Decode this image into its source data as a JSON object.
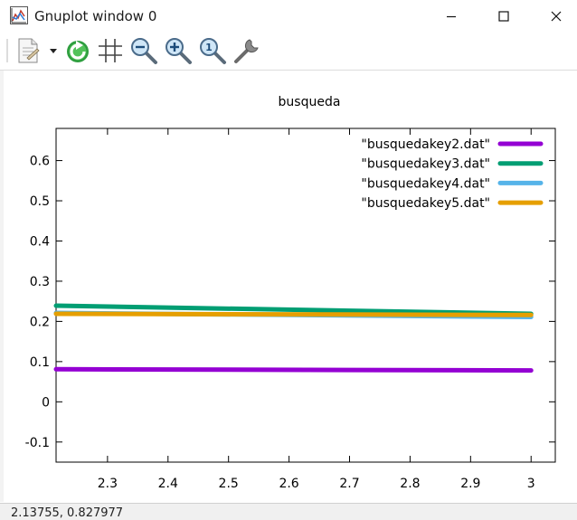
{
  "window": {
    "title": "Gnuplot window 0"
  },
  "toolbar": {
    "items": [
      {
        "name": "copy-print-icon"
      },
      {
        "name": "dropdown-arrow-icon"
      },
      {
        "name": "replot-icon"
      },
      {
        "name": "grid-icon"
      },
      {
        "name": "zoom-out-icon"
      },
      {
        "name": "zoom-in-icon"
      },
      {
        "name": "unzoom-icon"
      },
      {
        "name": "options-wrench-icon"
      }
    ]
  },
  "status": {
    "coords": "2.13755,  0.827977"
  },
  "chart_data": {
    "type": "line",
    "title": "busqueda",
    "xlabel": "",
    "ylabel": "",
    "xlim": [
      2.215,
      3.04
    ],
    "ylim": [
      -0.15,
      0.68
    ],
    "xticks": [
      {
        "v": 2.3,
        "label": "2.3"
      },
      {
        "v": 2.4,
        "label": "2.4"
      },
      {
        "v": 2.5,
        "label": "2.5"
      },
      {
        "v": 2.6,
        "label": "2.6"
      },
      {
        "v": 2.7,
        "label": "2.7"
      },
      {
        "v": 2.8,
        "label": "2.8"
      },
      {
        "v": 2.9,
        "label": "2.9"
      },
      {
        "v": 3.0,
        "label": "3"
      }
    ],
    "yticks": [
      {
        "v": -0.1,
        "label": "-0.1"
      },
      {
        "v": 0.0,
        "label": "0"
      },
      {
        "v": 0.1,
        "label": "0.1"
      },
      {
        "v": 0.2,
        "label": "0.2"
      },
      {
        "v": 0.3,
        "label": "0.3"
      },
      {
        "v": 0.4,
        "label": "0.4"
      },
      {
        "v": 0.5,
        "label": "0.5"
      },
      {
        "v": 0.6,
        "label": "0.6"
      }
    ],
    "legend_position": "top-right",
    "series": [
      {
        "name": "\"busquedakey2.dat\"",
        "color": "#9400d3",
        "x": [
          2.215,
          3.0
        ],
        "y": [
          0.081,
          0.078
        ]
      },
      {
        "name": "\"busquedakey3.dat\"",
        "color": "#009e73",
        "x": [
          2.215,
          3.0
        ],
        "y": [
          0.239,
          0.219
        ]
      },
      {
        "name": "\"busquedakey4.dat\"",
        "color": "#56b4e9",
        "x": [
          2.215,
          3.0
        ],
        "y": [
          0.221,
          0.211
        ]
      },
      {
        "name": "\"busquedakey5.dat\"",
        "color": "#e69f00",
        "x": [
          2.215,
          3.0
        ],
        "y": [
          0.219,
          0.216
        ]
      }
    ]
  }
}
